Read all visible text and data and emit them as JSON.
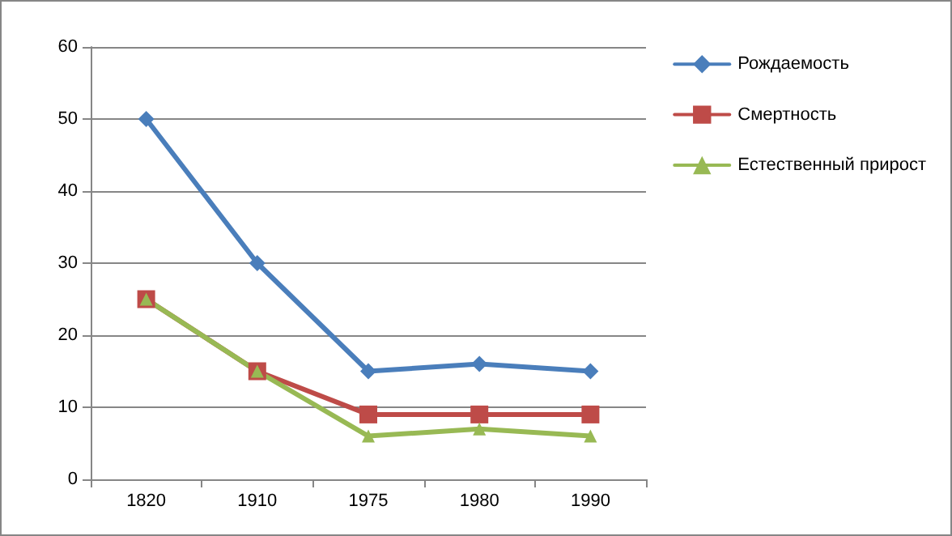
{
  "chart_data": {
    "type": "line",
    "categories": [
      "1820",
      "1910",
      "1975",
      "1980",
      "1990"
    ],
    "series": [
      {
        "name": "Рождаемость",
        "color": "#4a7ebb",
        "marker": "diamond",
        "values": [
          50,
          30,
          15,
          16,
          15
        ]
      },
      {
        "name": "Смертность",
        "color": "#be4b48",
        "marker": "square",
        "values": [
          25,
          15,
          9,
          9,
          9
        ]
      },
      {
        "name": "Естественный прирост",
        "color": "#98b954",
        "marker": "triangle",
        "values": [
          25,
          15,
          6,
          7,
          6
        ]
      }
    ],
    "ylim": [
      0,
      60
    ],
    "yticks": [
      0,
      10,
      20,
      30,
      40,
      50,
      60
    ],
    "grid": "y",
    "legend": "right",
    "line_style": "solid"
  }
}
